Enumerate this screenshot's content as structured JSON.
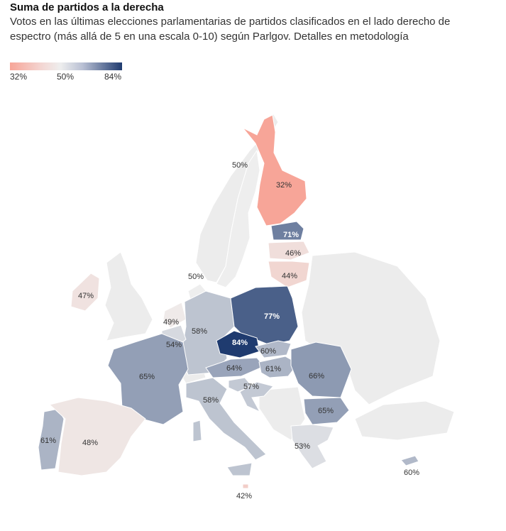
{
  "title": "Suma de partidos a la derecha",
  "subtitle": "Votos en las últimas elecciones parlamentarias de partidos clasificados en el lado derecho de espectro (más allá de 5 en una escala 0-10) según Parlgov. Detalles en metodología",
  "legend": {
    "min_label": "32%",
    "mid_label": "50%",
    "max_label": "84%",
    "min": 32,
    "mid": 50,
    "max": 84
  },
  "colors": {
    "low": "#f7a598",
    "mid": "#eeeeee",
    "high": "#1f3b6f",
    "no_data": "#ececec",
    "sea": "#ffffff"
  },
  "countries": [
    {
      "id": "finland",
      "value": 32,
      "label": "32%"
    },
    {
      "id": "sweden",
      "value": 50,
      "label": "50%"
    },
    {
      "id": "denmark",
      "value": 50,
      "label": "50%"
    },
    {
      "id": "estonia",
      "value": 71,
      "label": "71%"
    },
    {
      "id": "latvia",
      "value": 46,
      "label": "46%"
    },
    {
      "id": "lithuania",
      "value": 44,
      "label": "44%"
    },
    {
      "id": "ireland",
      "value": 47,
      "label": "47%"
    },
    {
      "id": "netherlands",
      "value": 49,
      "label": "49%"
    },
    {
      "id": "germany",
      "value": 58,
      "label": "58%"
    },
    {
      "id": "poland",
      "value": 77,
      "label": "77%"
    },
    {
      "id": "belgium",
      "value": 54,
      "label": "54%"
    },
    {
      "id": "czechia",
      "value": 84,
      "label": "84%"
    },
    {
      "id": "slovakia",
      "value": 60,
      "label": "60%"
    },
    {
      "id": "austria",
      "value": 64,
      "label": "64%"
    },
    {
      "id": "hungary",
      "value": 61,
      "label": "61%"
    },
    {
      "id": "romania",
      "value": 66,
      "label": "66%"
    },
    {
      "id": "france",
      "value": 65,
      "label": "65%"
    },
    {
      "id": "slovenia",
      "value": 57,
      "label": "57%"
    },
    {
      "id": "croatia",
      "value": 57,
      "label": "57%"
    },
    {
      "id": "bulgaria",
      "value": 65,
      "label": "65%"
    },
    {
      "id": "italy",
      "value": 58,
      "label": "58%"
    },
    {
      "id": "portugal",
      "value": 61,
      "label": "61%"
    },
    {
      "id": "spain",
      "value": 48,
      "label": "48%"
    },
    {
      "id": "greece",
      "value": 53,
      "label": "53%"
    },
    {
      "id": "malta",
      "value": 42,
      "label": "42%"
    },
    {
      "id": "cyprus",
      "value": 60,
      "label": "60%"
    }
  ]
}
